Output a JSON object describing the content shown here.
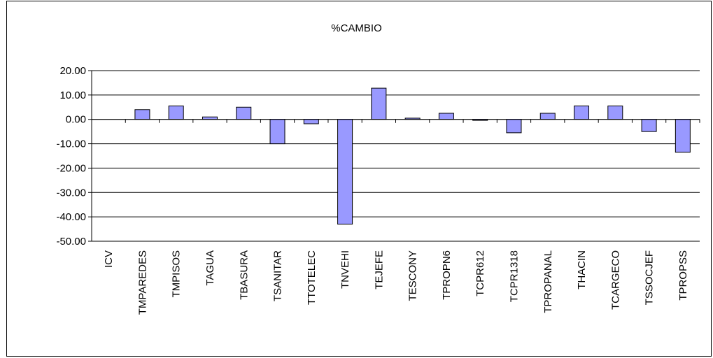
{
  "chart_data": {
    "type": "bar",
    "title": "%CAMBIO",
    "xlabel": "",
    "ylabel": "",
    "ylim": [
      -50,
      20
    ],
    "yticks": [
      "20.00",
      "10.00",
      "0.00",
      "-10.00",
      "-20.00",
      "-30.00",
      "-40.00",
      "-50.00"
    ],
    "grid": true,
    "legend": "none",
    "categories": [
      "ICV",
      "TMPAREDES",
      "TMPISOS",
      "TAGUA",
      "TBASURA",
      "TSANITAR",
      "TTOTELEC",
      "TNVEHI",
      "TEJEFE",
      "TESCONY",
      "TPROPN6",
      "TCPR612",
      "TCPR1318",
      "TPROPANAL",
      "THACIN",
      "TCARGECO",
      "TSSOCJEF",
      "TPROPSS"
    ],
    "values": [
      0,
      4.0,
      5.5,
      1.0,
      5.0,
      -10.0,
      -1.8,
      -43.0,
      12.8,
      0.5,
      2.5,
      -0.4,
      -5.5,
      2.5,
      5.5,
      5.5,
      -5.0,
      -13.5
    ],
    "colors": {
      "bar_fill": "#9999ff",
      "bar_stroke": "#000000",
      "grid": "#000000"
    }
  }
}
